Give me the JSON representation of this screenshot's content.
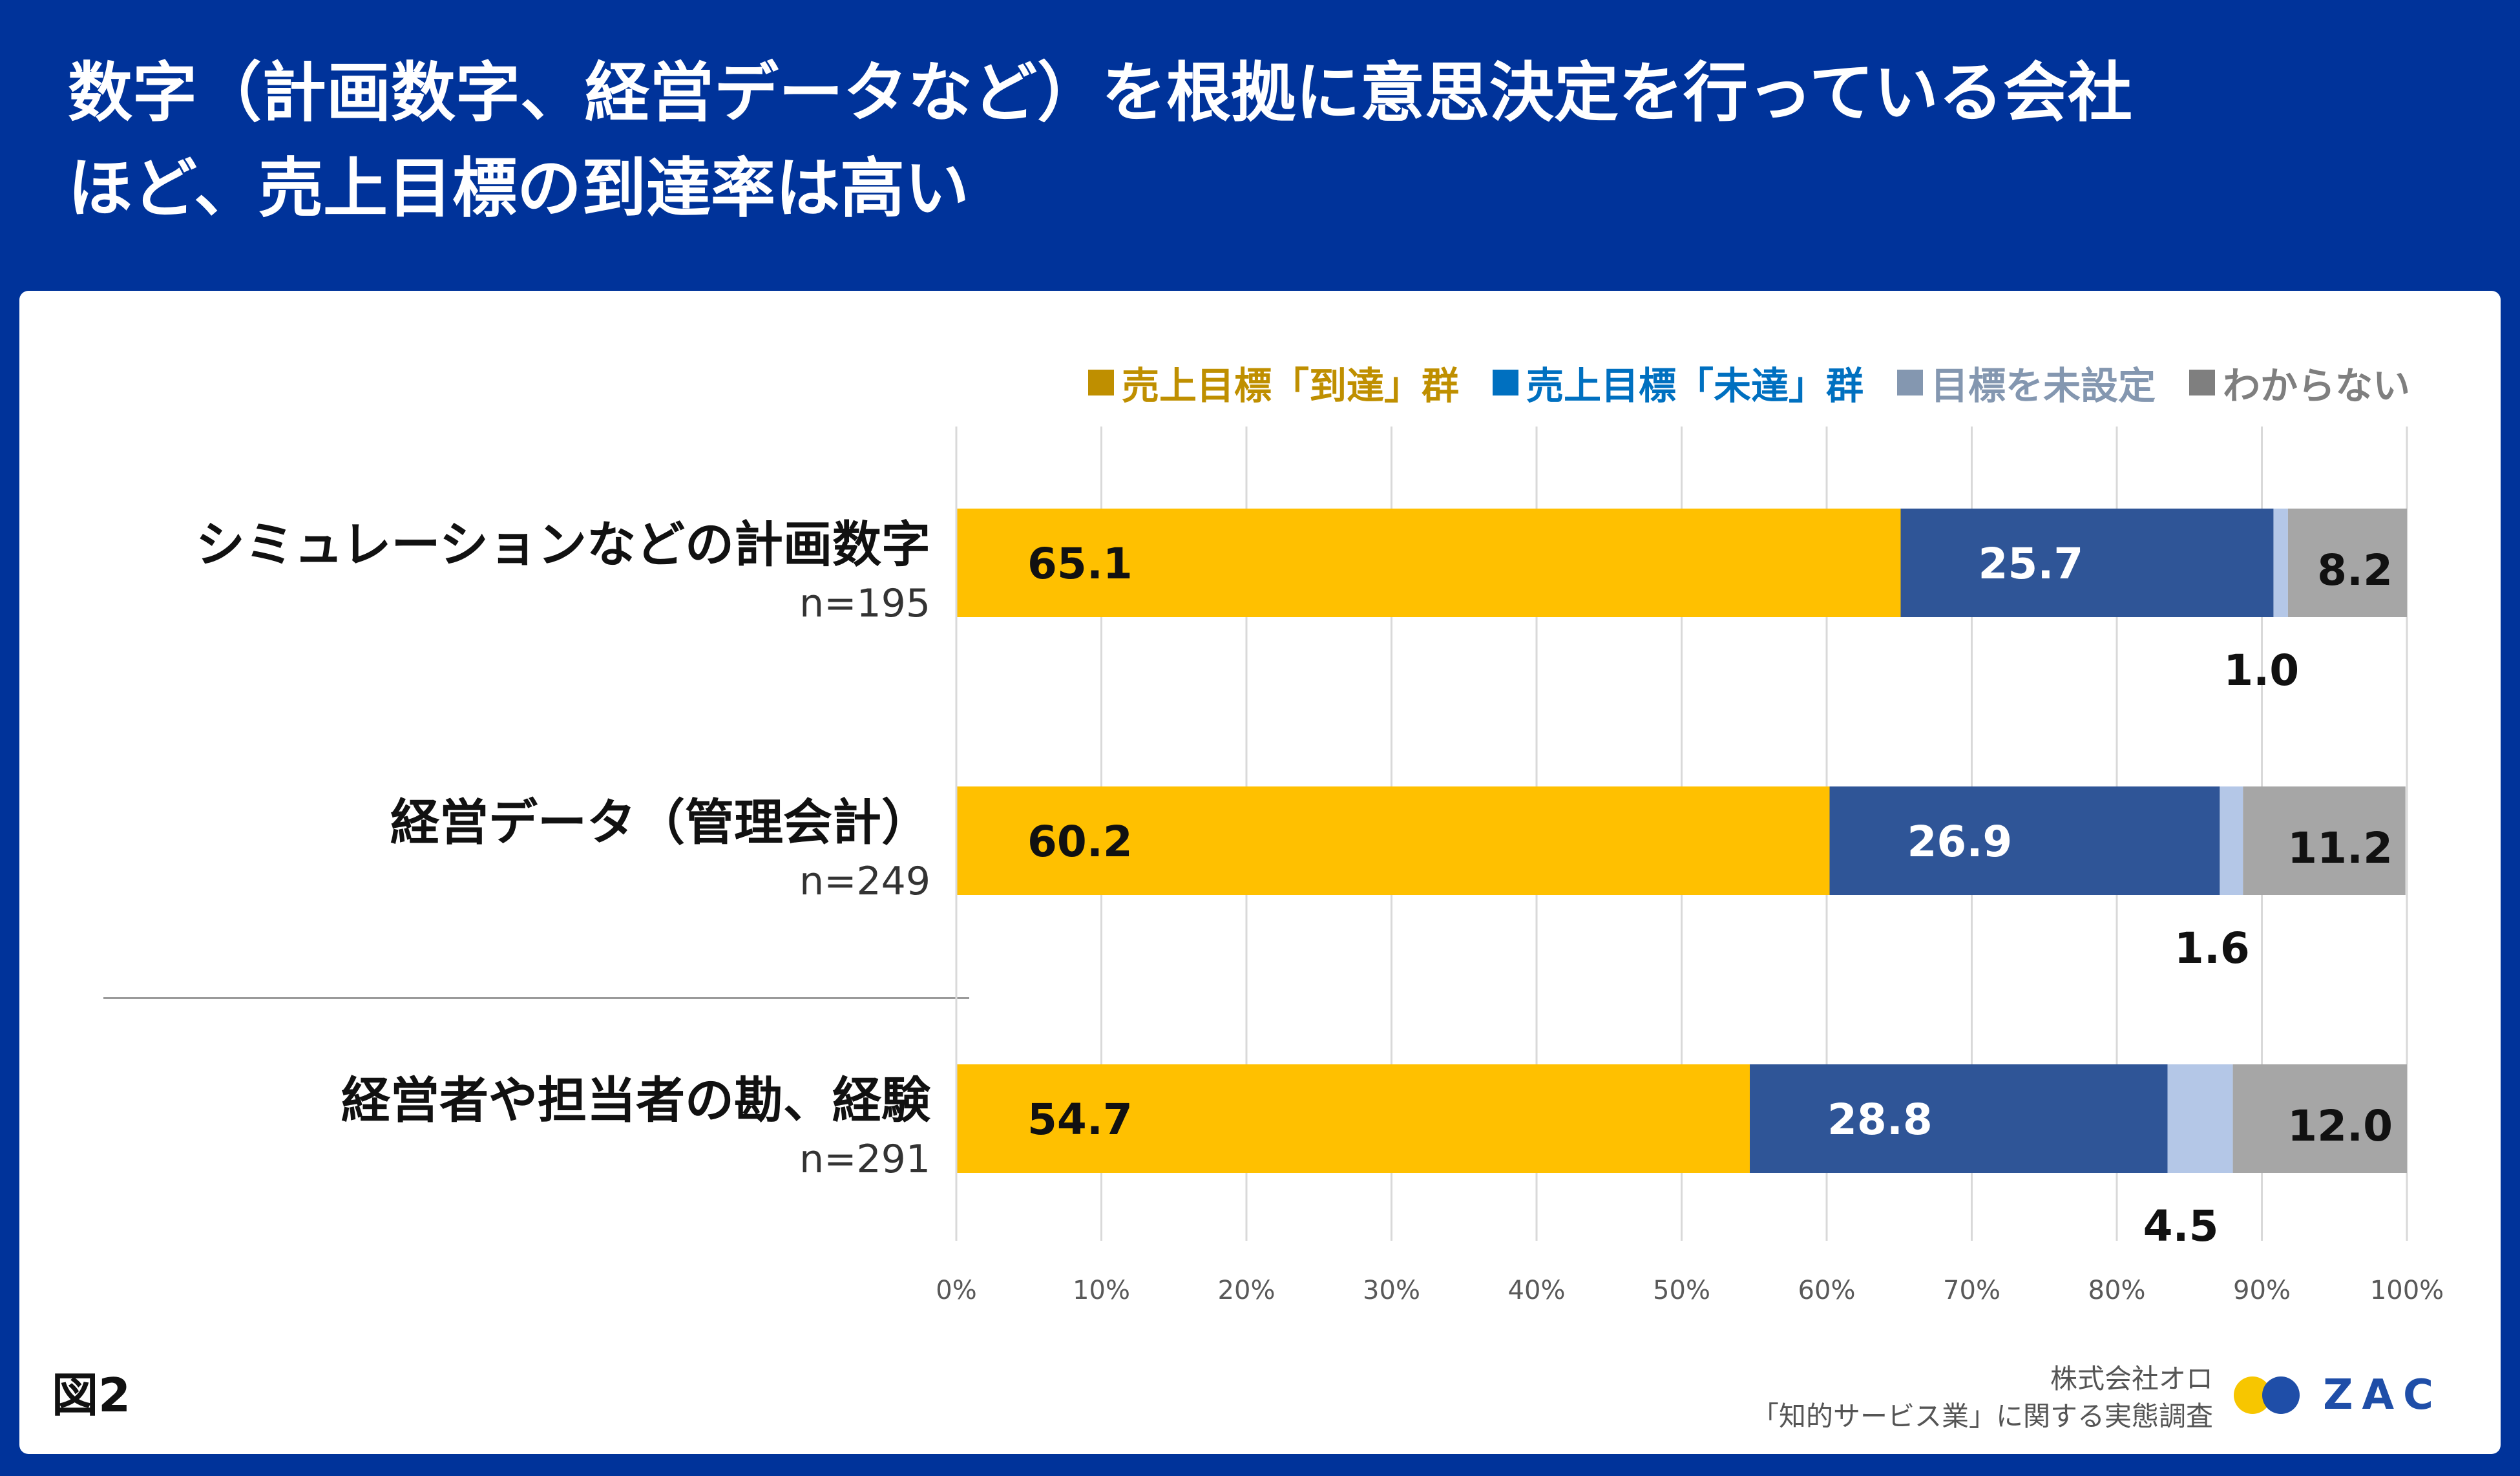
{
  "header": {
    "title_line1": "数字（計画数字、経営データなど）を根拠に意思決定を行っている会社",
    "title_line2": "ほど、売上目標の到達率は高い"
  },
  "colors": {
    "background": "#00339a",
    "reached": "#ffc000",
    "not_reached": "#2f5597",
    "not_set": "#b4c7e7",
    "unknown": "#a6a6a6",
    "legend_reached_text": "#bf8f00",
    "legend_not_reached_text": "#0070c0",
    "legend_not_set_text": "#8497b0",
    "legend_unknown_text": "#7f7f7f"
  },
  "chart_data": {
    "type": "bar",
    "orientation": "horizontal",
    "stacked": true,
    "percent": true,
    "legend_position": "top-right",
    "categories": [
      "シミュレーションなどの計画数字",
      "経営データ（管理会計）",
      "経営者や担当者の勘、経験"
    ],
    "sample_sizes": [
      "n=195",
      "n=249",
      "n=291"
    ],
    "series": [
      {
        "name": "売上目標「到達」群",
        "values": [
          65.1,
          60.2,
          54.7
        ],
        "labels": [
          "65.1",
          "60.2",
          "54.7"
        ]
      },
      {
        "name": "売上目標「未達」群",
        "values": [
          25.7,
          26.9,
          28.8
        ],
        "labels": [
          "25.7",
          "26.9",
          "28.8"
        ]
      },
      {
        "name": "目標を未設定",
        "values": [
          1.0,
          1.6,
          4.5
        ],
        "labels": [
          "1.0",
          "1.6",
          "4.5"
        ]
      },
      {
        "name": "わからない",
        "values": [
          8.2,
          11.2,
          12.0
        ],
        "labels": [
          "8.2",
          "11.2",
          "12.0"
        ]
      }
    ],
    "x_range": [
      0,
      100
    ],
    "x_ticks": [
      "0%",
      "10%",
      "20%",
      "30%",
      "40%",
      "50%",
      "60%",
      "70%",
      "80%",
      "90%",
      "100%"
    ],
    "grid": true
  },
  "footer": {
    "figure_label": "図2",
    "credit_line1": "株式会社オロ",
    "credit_line2": "「知的サービス業」に関する実態調査",
    "logo_text": "ZAC"
  }
}
